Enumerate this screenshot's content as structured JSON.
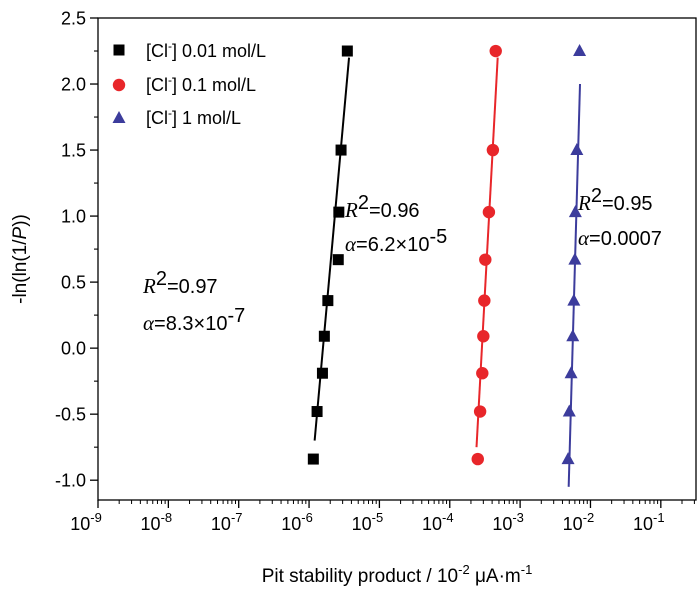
{
  "chart_data": {
    "type": "scatter",
    "xscale": "log",
    "xlim_exp": [
      -9,
      -0.5
    ],
    "ylim": [
      -1.15,
      2.5
    ],
    "x_tick_exponents": [
      -9,
      -8,
      -7,
      -6,
      -5,
      -4,
      -3,
      -2,
      -1
    ],
    "x_tick_base": "10",
    "y_ticks": [
      -1.0,
      -0.5,
      0.0,
      0.5,
      1.0,
      1.5,
      2.0,
      2.5
    ],
    "y_tick_labels": [
      "-1.0",
      "-0.5",
      "0.0",
      "0.5",
      "1.0",
      "1.5",
      "2.0",
      "2.5"
    ],
    "xlabel_prefix": "Pit stability product / 10",
    "xlabel_exp1": "-2",
    "xlabel_unit": " μA·m",
    "xlabel_exp2": "-1",
    "ylabel_prefix": "-ln(ln(1/",
    "ylabel_var": "P",
    "ylabel_suffix": "))",
    "series": [
      {
        "name": "[Cl⁻] 0.01 mol/L",
        "legend_pre": "[Cl",
        "legend_sup": "-",
        "legend_post": "] 0.01 mol/L",
        "marker": "square",
        "color": "#000000",
        "x": [
          1.15e-06,
          1.3e-06,
          1.55e-06,
          1.65e-06,
          1.85e-06,
          2.6e-06,
          2.65e-06,
          2.85e-06,
          3.5e-06
        ],
        "y": [
          -0.84,
          -0.48,
          -0.19,
          0.09,
          0.36,
          0.67,
          1.03,
          1.5,
          2.25
        ],
        "fit_line": {
          "x": [
            1.2e-06,
            3.7e-06
          ],
          "y": [
            -0.7,
            2.2
          ]
        },
        "r2_label": "R",
        "r2_value": "=0.97",
        "alpha_label": "α",
        "alpha_value": "=8.3×10",
        "alpha_exp": "-7"
      },
      {
        "name": "[Cl⁻] 0.1 mol/L",
        "legend_pre": "[Cl",
        "legend_sup": "-",
        "legend_post": "] 0.1 mol/L",
        "marker": "circle",
        "color": "#e8262a",
        "x": [
          0.00025,
          0.00027,
          0.00029,
          0.0003,
          0.00031,
          0.00032,
          0.00036,
          0.00041,
          0.00045
        ],
        "y": [
          -0.84,
          -0.48,
          -0.19,
          0.09,
          0.36,
          0.67,
          1.03,
          1.5,
          2.25
        ],
        "fit_line": {
          "x": [
            0.00024,
            0.00048
          ],
          "y": [
            -0.75,
            2.2
          ]
        },
        "r2_label": "R",
        "r2_value": "=0.96",
        "alpha_label": "α",
        "alpha_value": "=6.2×10",
        "alpha_exp": "-5"
      },
      {
        "name": "[Cl⁻] 1 mol/L",
        "legend_pre": "[Cl",
        "legend_sup": "-",
        "legend_post": "] 1 mol/L",
        "marker": "triangle",
        "color": "#3c3c9c",
        "x": [
          0.0048,
          0.005,
          0.0053,
          0.0056,
          0.0058,
          0.006,
          0.0061,
          0.0064,
          0.007
        ],
        "y": [
          -0.84,
          -0.48,
          -0.19,
          0.09,
          0.36,
          0.67,
          1.03,
          1.5,
          2.25
        ],
        "fit_line": {
          "x": [
            0.0049,
            0.0071
          ],
          "y": [
            -1.05,
            2.0
          ]
        },
        "r2_label": "R",
        "r2_value": "=0.95",
        "alpha_label": "α",
        "alpha_value": "=0.0007",
        "alpha_exp": ""
      }
    ],
    "r2_exp": "2"
  }
}
